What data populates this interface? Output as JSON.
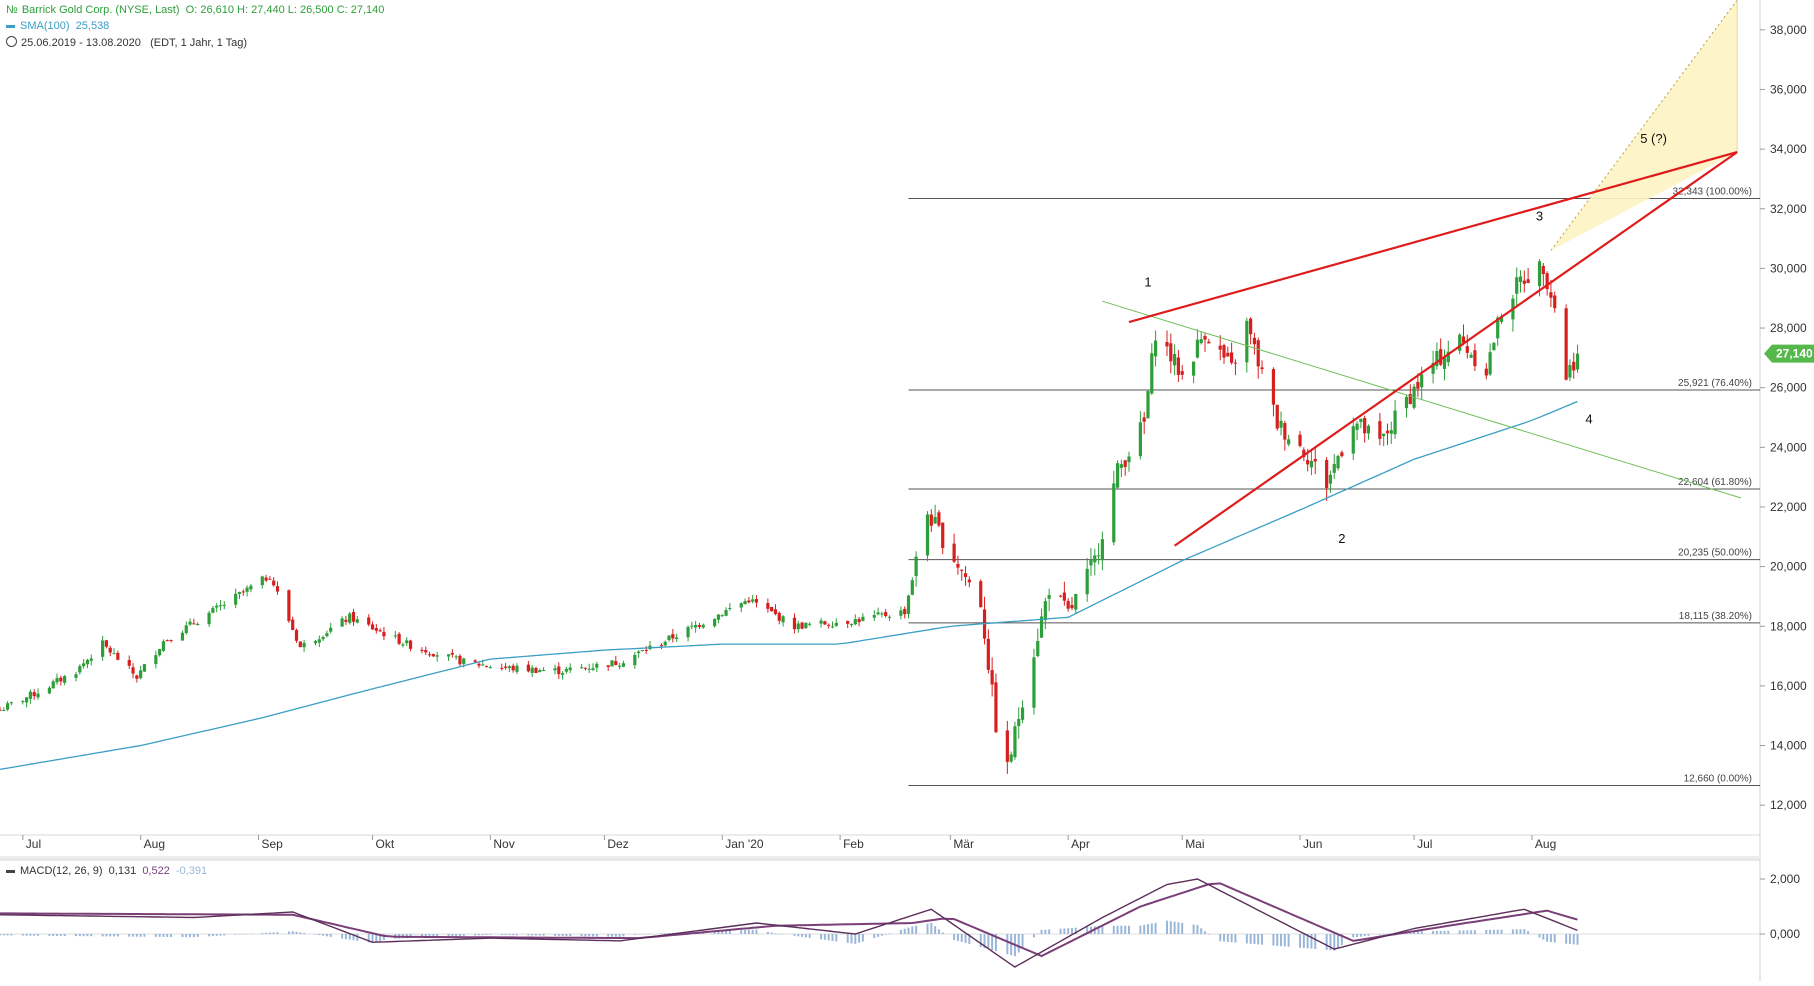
{
  "header": {
    "instrument": "Barrick Gold Corp. (NYSE, Last)",
    "ohlc": "O: 26,610  H: 27,440  L: 26,500  C: 27,140",
    "sma_label": "SMA(100)",
    "sma_value": "25,538",
    "range": "25.06.2019 - 13.08.2020",
    "range_detail": "(EDT, 1 Jahr, 1 Tag)",
    "macd_label": "MACD(12, 26, 9)",
    "macd_v1": "0,131",
    "macd_v2": "0,522",
    "macd_v3": "-0,391"
  },
  "colors": {
    "up": "#2e9e3a",
    "down": "#d62020",
    "sma": "#3a9fc4",
    "trend_red": "#e01b1b",
    "trend_green": "#6fbf5a",
    "fib_line": "#555555",
    "cone_fill": "#fdf3c4",
    "macd_line": "#7a3e78",
    "macd_hist": "#9ab6d8",
    "last_price_badge": "#55b84a"
  },
  "chart_data": {
    "type": "candlestick",
    "title": "",
    "x_months": [
      "Jul",
      "Aug",
      "Sep",
      "Okt",
      "Nov",
      "Dez",
      "Jan '20",
      "Feb",
      "Mär",
      "Apr",
      "Mai",
      "Jun",
      "Jul",
      "Aug"
    ],
    "y_ticks": [
      "12,000",
      "14,000",
      "16,000",
      "18,000",
      "20,000",
      "22,000",
      "24,000",
      "26,000",
      "28,000",
      "30,000",
      "32,000",
      "34,000",
      "36,000",
      "38,000"
    ],
    "ylim": [
      11000,
      39000
    ],
    "last_price": "27,140",
    "fib_levels": [
      {
        "label": "32,343 (100.00%)",
        "value": 32.343
      },
      {
        "label": "25,921 (76.40%)",
        "value": 25.921
      },
      {
        "label": "22,604 (61.80%)",
        "value": 22.604
      },
      {
        "label": "20,235 (50.00%)",
        "value": 20.235
      },
      {
        "label": "18,115 (38.20%)",
        "value": 18.115
      },
      {
        "label": "12,660 (0.00%)",
        "value": 12.66
      }
    ],
    "wave_labels": [
      "1",
      "2",
      "3",
      "4",
      "5 (?)"
    ],
    "price_anchors": [
      {
        "date": "2019-06-25",
        "close": 15.2
      },
      {
        "date": "2019-07-05",
        "close": 15.8
      },
      {
        "date": "2019-07-15",
        "close": 16.5
      },
      {
        "date": "2019-07-22",
        "close": 17.4
      },
      {
        "date": "2019-07-31",
        "close": 16.3
      },
      {
        "date": "2019-08-07",
        "close": 17.5
      },
      {
        "date": "2019-08-20",
        "close": 18.5
      },
      {
        "date": "2019-09-04",
        "close": 19.7
      },
      {
        "date": "2019-09-12",
        "close": 17.3
      },
      {
        "date": "2019-09-25",
        "close": 18.3
      },
      {
        "date": "2019-10-10",
        "close": 17.4
      },
      {
        "date": "2019-10-25",
        "close": 16.8
      },
      {
        "date": "2019-11-05",
        "close": 16.6
      },
      {
        "date": "2019-11-20",
        "close": 16.5
      },
      {
        "date": "2019-12-05",
        "close": 16.8
      },
      {
        "date": "2019-12-20",
        "close": 17.7
      },
      {
        "date": "2020-01-08",
        "close": 18.9
      },
      {
        "date": "2020-01-20",
        "close": 18.0
      },
      {
        "date": "2020-02-05",
        "close": 18.2
      },
      {
        "date": "2020-02-18",
        "close": 18.5
      },
      {
        "date": "2020-02-24",
        "close": 21.8
      },
      {
        "date": "2020-03-02",
        "close": 20.3
      },
      {
        "date": "2020-03-09",
        "close": 18.8
      },
      {
        "date": "2020-03-13",
        "close": 14.7
      },
      {
        "date": "2020-03-16",
        "close": 13.2
      },
      {
        "date": "2020-03-20",
        "close": 15.6
      },
      {
        "date": "2020-03-27",
        "close": 19.3
      },
      {
        "date": "2020-04-01",
        "close": 18.4
      },
      {
        "date": "2020-04-08",
        "close": 20.2
      },
      {
        "date": "2020-04-14",
        "close": 23.2
      },
      {
        "date": "2020-04-21",
        "close": 24.8
      },
      {
        "date": "2020-04-24",
        "close": 27.9
      },
      {
        "date": "2020-05-01",
        "close": 26.4
      },
      {
        "date": "2020-05-07",
        "close": 27.9
      },
      {
        "date": "2020-05-14",
        "close": 26.6
      },
      {
        "date": "2020-05-18",
        "close": 28.1
      },
      {
        "date": "2020-05-26",
        "close": 24.8
      },
      {
        "date": "2020-06-02",
        "close": 23.9
      },
      {
        "date": "2020-06-08",
        "close": 22.8
      },
      {
        "date": "2020-06-15",
        "close": 24.9
      },
      {
        "date": "2020-06-22",
        "close": 24.1
      },
      {
        "date": "2020-06-29",
        "close": 25.6
      },
      {
        "date": "2020-07-06",
        "close": 26.8
      },
      {
        "date": "2020-07-13",
        "close": 27.6
      },
      {
        "date": "2020-07-20",
        "close": 26.6
      },
      {
        "date": "2020-07-24",
        "close": 28.6
      },
      {
        "date": "2020-07-29",
        "close": 29.6
      },
      {
        "date": "2020-08-04",
        "close": 30.1
      },
      {
        "date": "2020-08-07",
        "close": 28.7
      },
      {
        "date": "2020-08-10",
        "close": 26.4
      },
      {
        "date": "2020-08-13",
        "close": 27.14
      }
    ],
    "sma_anchors": [
      {
        "date": "2019-06-25",
        "value": 13.2
      },
      {
        "date": "2019-08-01",
        "value": 14.0
      },
      {
        "date": "2019-09-01",
        "value": 14.9
      },
      {
        "date": "2019-10-01",
        "value": 15.9
      },
      {
        "date": "2019-11-01",
        "value": 16.9
      },
      {
        "date": "2019-12-01",
        "value": 17.2
      },
      {
        "date": "2020-01-01",
        "value": 17.4
      },
      {
        "date": "2020-02-01",
        "value": 17.4
      },
      {
        "date": "2020-03-01",
        "value": 18.0
      },
      {
        "date": "2020-04-01",
        "value": 18.3
      },
      {
        "date": "2020-05-01",
        "value": 20.2
      },
      {
        "date": "2020-06-01",
        "value": 21.9
      },
      {
        "date": "2020-07-01",
        "value": 23.6
      },
      {
        "date": "2020-08-01",
        "value": 24.9
      },
      {
        "date": "2020-08-13",
        "value": 25.538
      }
    ],
    "macd_ylim": [
      -1.2,
      2.4
    ],
    "macd_y_ticks": [
      "0,000",
      "2,000"
    ],
    "macd_line_anchors": [
      {
        "date": "2019-06-25",
        "value": 0.7
      },
      {
        "date": "2019-08-15",
        "value": 0.6
      },
      {
        "date": "2019-09-10",
        "value": 0.8
      },
      {
        "date": "2019-10-01",
        "value": -0.3
      },
      {
        "date": "2019-11-01",
        "value": -0.15
      },
      {
        "date": "2019-12-05",
        "value": -0.25
      },
      {
        "date": "2020-01-10",
        "value": 0.4
      },
      {
        "date": "2020-02-05",
        "value": 0.0
      },
      {
        "date": "2020-02-25",
        "value": 0.9
      },
      {
        "date": "2020-03-18",
        "value": -1.2
      },
      {
        "date": "2020-04-10",
        "value": 0.6
      },
      {
        "date": "2020-04-27",
        "value": 1.8
      },
      {
        "date": "2020-05-05",
        "value": 2.0
      },
      {
        "date": "2020-06-10",
        "value": -0.55
      },
      {
        "date": "2020-07-01",
        "value": 0.2
      },
      {
        "date": "2020-07-30",
        "value": 0.9
      },
      {
        "date": "2020-08-13",
        "value": 0.131
      }
    ],
    "macd_signal_anchors": [
      {
        "date": "2019-06-25",
        "value": 0.75
      },
      {
        "date": "2019-09-10",
        "value": 0.7
      },
      {
        "date": "2019-10-05",
        "value": -0.1
      },
      {
        "date": "2019-12-10",
        "value": -0.15
      },
      {
        "date": "2020-01-15",
        "value": 0.3
      },
      {
        "date": "2020-02-20",
        "value": 0.4
      },
      {
        "date": "2020-03-01",
        "value": 0.6
      },
      {
        "date": "2020-03-25",
        "value": -0.8
      },
      {
        "date": "2020-04-20",
        "value": 1.0
      },
      {
        "date": "2020-05-10",
        "value": 1.9
      },
      {
        "date": "2020-06-15",
        "value": -0.25
      },
      {
        "date": "2020-07-10",
        "value": 0.3
      },
      {
        "date": "2020-08-05",
        "value": 0.85
      },
      {
        "date": "2020-08-13",
        "value": 0.522
      }
    ]
  }
}
